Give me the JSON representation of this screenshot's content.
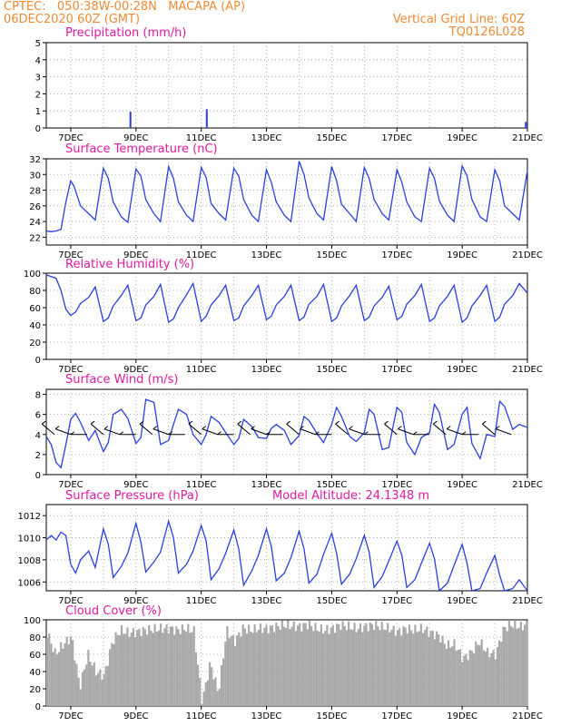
{
  "header": {
    "line1_left": "CPTEC:   050:38W-00:28N   MACAPA (AP)",
    "line2_left": "06DEC2020 60Z (GMT)",
    "line1_right": "Vertical Grid Line: 60Z",
    "line2_right": "TQ0126L028"
  },
  "colors": {
    "header": "#ee8a33",
    "title": "#e01aa0",
    "series": "#2a3fe0",
    "cloud": "#a9a9a9",
    "grid": "#9a9a9a"
  },
  "x_axis": {
    "start": 6.25,
    "end": 21,
    "tick_labels": [
      "7DEC",
      "9DEC",
      "11DEC",
      "13DEC",
      "15DEC",
      "17DEC",
      "19DEC",
      "21DEC"
    ],
    "tick_values": [
      7,
      9,
      11,
      13,
      15,
      17,
      19,
      21
    ],
    "grid_interval_days": 1
  },
  "chart_data": [
    {
      "id": "precip",
      "type": "bar",
      "title": "Precipitation (mm/h)",
      "ylim": [
        0,
        5
      ],
      "yticks": [
        0,
        1,
        2,
        3,
        4,
        5
      ],
      "x": [
        8.83,
        11.17,
        20.95
      ],
      "values": [
        0.95,
        1.1,
        0.35
      ]
    },
    {
      "id": "temp",
      "type": "line",
      "title": "Surface Temperature (nC)",
      "ylim": [
        21,
        32
      ],
      "yticks": [
        22,
        24,
        26,
        28,
        30,
        32
      ],
      "x": [
        6.25,
        6.4,
        6.55,
        6.7,
        6.85,
        7.0,
        7.1,
        7.3,
        7.55,
        7.75,
        8.0,
        8.15,
        8.3,
        8.55,
        8.75,
        9.0,
        9.15,
        9.3,
        9.55,
        9.75,
        10.0,
        10.15,
        10.3,
        10.55,
        10.75,
        11.0,
        11.15,
        11.3,
        11.55,
        11.75,
        12.0,
        12.15,
        12.3,
        12.55,
        12.75,
        13.0,
        13.15,
        13.3,
        13.55,
        13.75,
        14.0,
        14.15,
        14.3,
        14.55,
        14.75,
        15.0,
        15.15,
        15.3,
        15.55,
        15.75,
        16.0,
        16.15,
        16.3,
        16.55,
        16.75,
        17.0,
        17.15,
        17.3,
        17.55,
        17.75,
        18.0,
        18.15,
        18.3,
        18.55,
        18.75,
        19.0,
        19.15,
        19.3,
        19.55,
        19.75,
        20.0,
        20.15,
        20.3,
        20.55,
        20.75,
        21.0
      ],
      "values": [
        22.8,
        22.7,
        22.8,
        23.0,
        26.5,
        29.2,
        28.5,
        26.0,
        25.0,
        24.2,
        30.8,
        29.5,
        26.5,
        24.6,
        23.9,
        30.7,
        29.8,
        26.8,
        25.0,
        24.0,
        31.0,
        29.5,
        26.5,
        24.8,
        24.0,
        30.9,
        29.6,
        26.3,
        25.0,
        24.2,
        30.8,
        29.8,
        26.8,
        24.8,
        24.0,
        30.6,
        29.0,
        26.5,
        24.8,
        24.0,
        31.7,
        30.0,
        27.0,
        25.0,
        24.2,
        31.0,
        29.2,
        26.2,
        25.0,
        24.0,
        30.9,
        29.5,
        26.8,
        25.0,
        24.2,
        30.6,
        29.0,
        26.5,
        24.6,
        24.0,
        30.8,
        29.5,
        26.6,
        24.8,
        24.0,
        31.1,
        29.8,
        26.8,
        24.6,
        24.0,
        30.6,
        29.2,
        26.0,
        25.0,
        24.2,
        30.5
      ]
    },
    {
      "id": "rh",
      "type": "line",
      "title": "Relative Humidity (%)",
      "ylim": [
        0,
        100
      ],
      "yticks": [
        0,
        20,
        40,
        60,
        80,
        100
      ],
      "x": [
        6.25,
        6.4,
        6.55,
        6.7,
        6.85,
        7.0,
        7.15,
        7.3,
        7.55,
        7.75,
        8.0,
        8.15,
        8.3,
        8.55,
        8.75,
        9.0,
        9.15,
        9.3,
        9.55,
        9.75,
        10.0,
        10.15,
        10.3,
        10.55,
        10.75,
        11.0,
        11.15,
        11.3,
        11.55,
        11.75,
        12.0,
        12.15,
        12.3,
        12.55,
        12.75,
        13.0,
        13.15,
        13.3,
        13.55,
        13.75,
        14.0,
        14.15,
        14.3,
        14.55,
        14.75,
        15.0,
        15.15,
        15.3,
        15.55,
        15.75,
        16.0,
        16.15,
        16.3,
        16.55,
        16.75,
        17.0,
        17.15,
        17.3,
        17.55,
        17.75,
        18.0,
        18.15,
        18.3,
        18.55,
        18.75,
        19.0,
        19.15,
        19.3,
        19.55,
        19.75,
        20.0,
        20.15,
        20.3,
        20.55,
        20.75,
        21.0
      ],
      "values": [
        98,
        96,
        94,
        80,
        58,
        51,
        55,
        65,
        72,
        84,
        44,
        48,
        62,
        74,
        86,
        45,
        48,
        63,
        73,
        87,
        43,
        47,
        60,
        75,
        88,
        44,
        50,
        63,
        74,
        86,
        45,
        48,
        62,
        74,
        86,
        46,
        50,
        63,
        73,
        86,
        45,
        49,
        64,
        73,
        87,
        44,
        48,
        62,
        74,
        86,
        45,
        49,
        62,
        72,
        85,
        46,
        50,
        64,
        74,
        87,
        44,
        48,
        62,
        73,
        86,
        43,
        48,
        62,
        74,
        86,
        44,
        49,
        64,
        74,
        88,
        77
      ]
    },
    {
      "id": "wind",
      "type": "line",
      "title": "Surface Wind (m/s)",
      "ylim": [
        0,
        8.5
      ],
      "yticks": [
        0,
        2,
        4,
        6,
        8
      ],
      "x": [
        6.25,
        6.4,
        6.55,
        6.7,
        6.85,
        7.0,
        7.15,
        7.3,
        7.55,
        7.75,
        8.0,
        8.15,
        8.3,
        8.55,
        8.75,
        9.0,
        9.15,
        9.3,
        9.55,
        9.75,
        10.0,
        10.15,
        10.3,
        10.55,
        10.75,
        11.0,
        11.15,
        11.3,
        11.55,
        11.75,
        12.0,
        12.15,
        12.3,
        12.55,
        12.75,
        13.0,
        13.15,
        13.3,
        13.55,
        13.75,
        14.0,
        14.15,
        14.3,
        14.55,
        14.75,
        15.0,
        15.15,
        15.3,
        15.55,
        15.75,
        16.0,
        16.15,
        16.3,
        16.55,
        16.75,
        17.0,
        17.15,
        17.3,
        17.55,
        17.75,
        18.0,
        18.15,
        18.3,
        18.55,
        18.75,
        19.0,
        19.15,
        19.3,
        19.55,
        19.75,
        20.0,
        20.15,
        20.3,
        20.55,
        20.75,
        21.0
      ],
      "values": [
        3.8,
        3.0,
        1.2,
        0.7,
        3.0,
        5.5,
        6.1,
        5.2,
        3.4,
        4.4,
        2.3,
        3.2,
        6.0,
        6.5,
        5.6,
        3.1,
        3.7,
        7.5,
        7.2,
        3.0,
        3.4,
        5.0,
        6.5,
        6.0,
        4.0,
        3.0,
        4.0,
        5.8,
        5.2,
        4.2,
        3.0,
        3.6,
        5.5,
        4.8,
        3.7,
        3.6,
        4.6,
        5.0,
        4.4,
        3.0,
        3.9,
        5.8,
        5.4,
        4.1,
        3.2,
        5.0,
        6.7,
        5.8,
        3.8,
        3.3,
        4.2,
        6.5,
        6.0,
        2.5,
        2.7,
        6.7,
        6.2,
        3.2,
        2.0,
        3.7,
        4.2,
        7.0,
        6.2,
        2.5,
        3.0,
        6.0,
        6.7,
        3.1,
        1.6,
        4.0,
        3.8,
        7.3,
        6.8,
        4.5,
        5.0,
        4.7
      ]
    },
    {
      "id": "pres",
      "type": "line",
      "title": "Surface Pressure (hPa)",
      "ylim": [
        1005.2,
        1013
      ],
      "yticks": [
        1006,
        1008,
        1010,
        1012
      ],
      "x": [
        6.25,
        6.4,
        6.55,
        6.7,
        6.85,
        7.0,
        7.15,
        7.3,
        7.55,
        7.75,
        8.0,
        8.15,
        8.3,
        8.55,
        8.75,
        9.0,
        9.15,
        9.3,
        9.55,
        9.75,
        10.0,
        10.15,
        10.3,
        10.55,
        10.75,
        11.0,
        11.15,
        11.3,
        11.55,
        11.75,
        12.0,
        12.15,
        12.3,
        12.55,
        12.75,
        13.0,
        13.15,
        13.3,
        13.55,
        13.75,
        14.0,
        14.15,
        14.3,
        14.55,
        14.75,
        15.0,
        15.15,
        15.3,
        15.55,
        15.75,
        16.0,
        16.15,
        16.3,
        16.55,
        16.75,
        17.0,
        17.15,
        17.3,
        17.55,
        17.75,
        18.0,
        18.15,
        18.3,
        18.55,
        18.75,
        19.0,
        19.15,
        19.3,
        19.55,
        19.75,
        20.0,
        20.15,
        20.3,
        20.55,
        20.75,
        21.0
      ],
      "values": [
        1009.8,
        1010.2,
        1009.8,
        1010.5,
        1010.2,
        1007.6,
        1006.8,
        1008.0,
        1008.8,
        1007.3,
        1010.8,
        1009.4,
        1006.4,
        1007.4,
        1008.6,
        1011.3,
        1009.6,
        1006.9,
        1007.8,
        1008.7,
        1011.5,
        1010.0,
        1006.8,
        1007.6,
        1008.8,
        1011.1,
        1009.7,
        1006.2,
        1007.2,
        1008.6,
        1010.7,
        1009.0,
        1005.7,
        1007.0,
        1008.4,
        1010.8,
        1009.2,
        1006.1,
        1006.8,
        1008.2,
        1010.6,
        1009.0,
        1005.9,
        1006.7,
        1008.5,
        1010.4,
        1008.6,
        1005.8,
        1006.7,
        1008.1,
        1010.2,
        1008.7,
        1005.5,
        1006.5,
        1007.9,
        1009.7,
        1008.4,
        1005.5,
        1006.2,
        1007.7,
        1009.5,
        1008.1,
        1005.2,
        1005.9,
        1007.5,
        1009.4,
        1007.7,
        1005.2,
        1005.4,
        1006.8,
        1008.4,
        1006.6,
        1005.2,
        1005.4,
        1006.2,
        1005.2
      ]
    },
    {
      "id": "cloud",
      "type": "area",
      "title": "Cloud Cover (%)",
      "ylim": [
        0,
        100
      ],
      "yticks": [
        0,
        20,
        40,
        60,
        80,
        100
      ],
      "x": [
        6.25,
        6.5,
        6.75,
        7.0,
        7.25,
        7.5,
        7.75,
        8.0,
        8.25,
        8.5,
        8.75,
        9.0,
        9.25,
        9.5,
        9.75,
        10.0,
        10.25,
        10.5,
        10.75,
        11.0,
        11.25,
        11.5,
        11.75,
        12.0,
        12.25,
        12.5,
        12.75,
        13.0,
        13.25,
        13.5,
        13.75,
        14.0,
        14.25,
        14.5,
        14.75,
        15.0,
        15.25,
        15.5,
        15.75,
        16.0,
        16.25,
        16.5,
        16.75,
        17.0,
        17.25,
        17.5,
        17.75,
        18.0,
        18.25,
        18.5,
        18.75,
        19.0,
        19.25,
        19.5,
        19.75,
        20.0,
        20.25,
        20.5,
        20.75,
        21.0
      ],
      "values": [
        85,
        60,
        72,
        80,
        22,
        60,
        40,
        35,
        75,
        88,
        85,
        86,
        88,
        89,
        90,
        90,
        88,
        90,
        87,
        5,
        50,
        15,
        88,
        75,
        90,
        88,
        90,
        90,
        92,
        94,
        93,
        92,
        95,
        90,
        88,
        90,
        94,
        92,
        90,
        92,
        94,
        92,
        90,
        86,
        90,
        88,
        90,
        85,
        82,
        70,
        72,
        55,
        62,
        75,
        62,
        60,
        90,
        95,
        92,
        95
      ]
    }
  ],
  "panel_extras": {
    "pressure_altitude": "Model Altitude: 24.1348 m"
  }
}
